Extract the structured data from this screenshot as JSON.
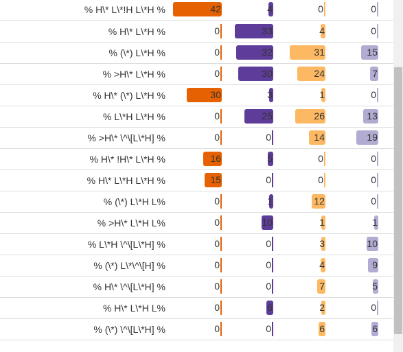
{
  "colors": {
    "series": [
      "#e66101",
      "#5e3c99",
      "#fdb863",
      "#b2abd2"
    ],
    "zero_tick": [
      "#e66101",
      "#5e3c99",
      "#fdb863",
      "#b2abd2"
    ]
  },
  "max_value": 42,
  "rows": [
    {
      "label": "% H\\* L\\*!H L\\*H %",
      "values": [
        42,
        4,
        0,
        0
      ]
    },
    {
      "label": "% H\\* L\\*H %",
      "values": [
        0,
        33,
        4,
        0
      ]
    },
    {
      "label": "% (\\*) L\\*H %",
      "values": [
        0,
        32,
        31,
        15
      ]
    },
    {
      "label": "% >H\\* L\\*H %",
      "values": [
        0,
        30,
        24,
        7
      ]
    },
    {
      "label": "% H\\* (\\*) L\\*H %",
      "values": [
        30,
        3,
        1,
        0
      ]
    },
    {
      "label": "% L\\*H L\\*H %",
      "values": [
        0,
        25,
        26,
        13
      ]
    },
    {
      "label": "% >H\\* \\^\\[L\\*H] %",
      "values": [
        0,
        0,
        14,
        19
      ]
    },
    {
      "label": "% H\\* !H\\* L\\*H %",
      "values": [
        16,
        5,
        0,
        0
      ]
    },
    {
      "label": "% H\\* L\\*H L\\*H %",
      "values": [
        15,
        0,
        0,
        0
      ]
    },
    {
      "label": "% (\\*) L\\*H L%",
      "values": [
        0,
        1,
        12,
        0
      ]
    },
    {
      "label": "% >H\\* L\\*H L%",
      "values": [
        0,
        10,
        1,
        1
      ]
    },
    {
      "label": "% L\\*H \\^\\[L\\*H] %",
      "values": [
        0,
        0,
        3,
        10
      ]
    },
    {
      "label": "% (\\*) L\\*\\^\\[H] %",
      "values": [
        0,
        0,
        4,
        9
      ]
    },
    {
      "label": "% H\\* \\^\\[L\\*H] %",
      "values": [
        0,
        0,
        7,
        5
      ]
    },
    {
      "label": "% H\\* L\\*H L%",
      "values": [
        0,
        6,
        2,
        0
      ]
    },
    {
      "label": "% (\\*) \\^\\[L\\*H] %",
      "values": [
        0,
        0,
        6,
        6
      ]
    }
  ]
}
